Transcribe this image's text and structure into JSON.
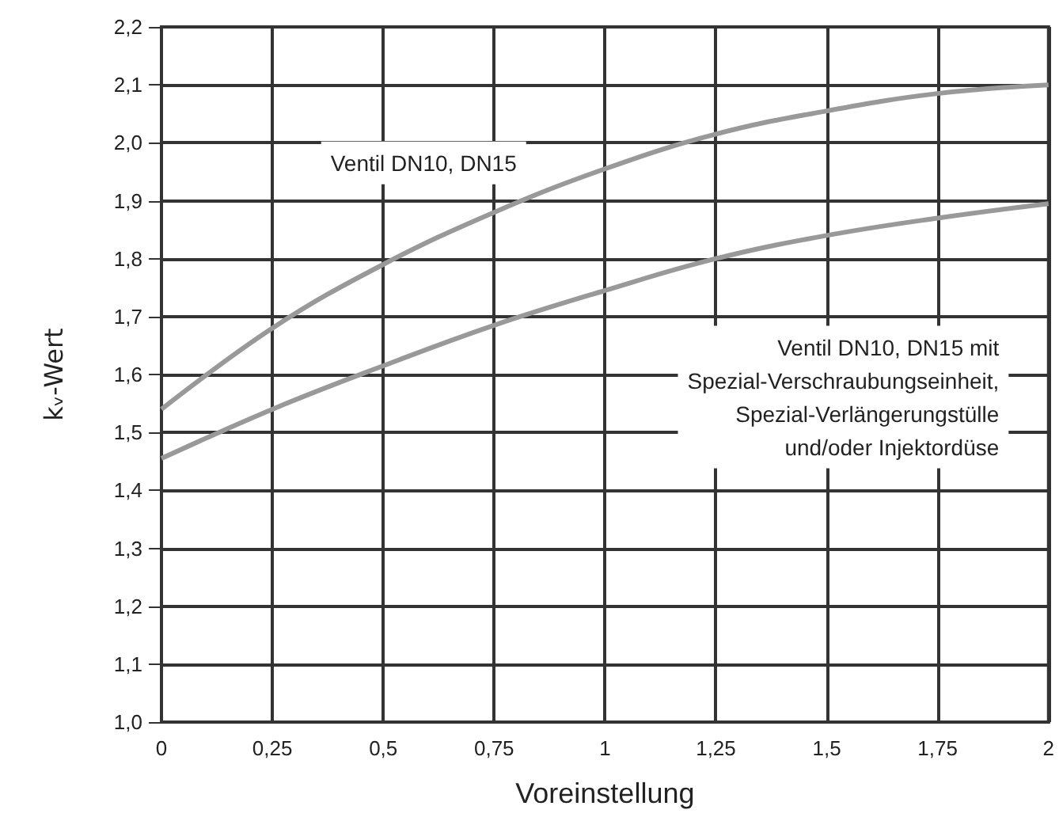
{
  "chart_data": {
    "type": "line",
    "xlabel": "Voreinstellung",
    "ylabel": "kᵥ-Wert",
    "x": [
      0,
      0.25,
      0.5,
      0.75,
      1,
      1.25,
      1.5,
      1.75,
      2
    ],
    "series": [
      {
        "name": "Ventil DN10, DN15",
        "color": "#999999",
        "values": [
          1.54,
          1.68,
          1.79,
          1.88,
          1.955,
          2.015,
          2.055,
          2.085,
          2.1
        ]
      },
      {
        "name": "Ventil DN10, DN15 mit\nSpezial-Verschraubungseinheit,\nSpezial-Verlängerungstülle\nund/oder Injektordüse",
        "color": "#999999",
        "values": [
          1.455,
          1.54,
          1.615,
          1.685,
          1.745,
          1.8,
          1.84,
          1.87,
          1.895
        ]
      }
    ],
    "xlim": [
      0,
      2
    ],
    "xticks": [
      0,
      {
        "value": 0.25,
        "label": "0,25"
      },
      {
        "value": 0.5,
        "label": "0,5"
      },
      {
        "value": 0.75,
        "label": "0,75"
      },
      1,
      {
        "value": 1.25,
        "label": "1,25"
      },
      {
        "value": 1.5,
        "label": "1,5"
      },
      {
        "value": 1.75,
        "label": "1,75"
      },
      2
    ],
    "ylim": [
      1.0,
      2.2
    ],
    "yticks": [
      {
        "value": 1.0,
        "label": "1,0"
      },
      {
        "value": 1.1,
        "label": "1,1"
      },
      {
        "value": 1.2,
        "label": "1,2"
      },
      {
        "value": 1.3,
        "label": "1,3"
      },
      {
        "value": 1.4,
        "label": "1,4"
      },
      {
        "value": 1.5,
        "label": "1,5"
      },
      {
        "value": 1.6,
        "label": "1,6"
      },
      {
        "value": 1.7,
        "label": "1,7"
      },
      {
        "value": 1.8,
        "label": "1,8"
      },
      {
        "value": 1.9,
        "label": "1,9"
      },
      {
        "value": 2.0,
        "label": "2,0"
      },
      {
        "value": 2.1,
        "label": "2,1"
      },
      {
        "value": 2.2,
        "label": "2,2"
      }
    ],
    "grid": true,
    "legend": false,
    "marker": "none",
    "line_style": "solid"
  }
}
